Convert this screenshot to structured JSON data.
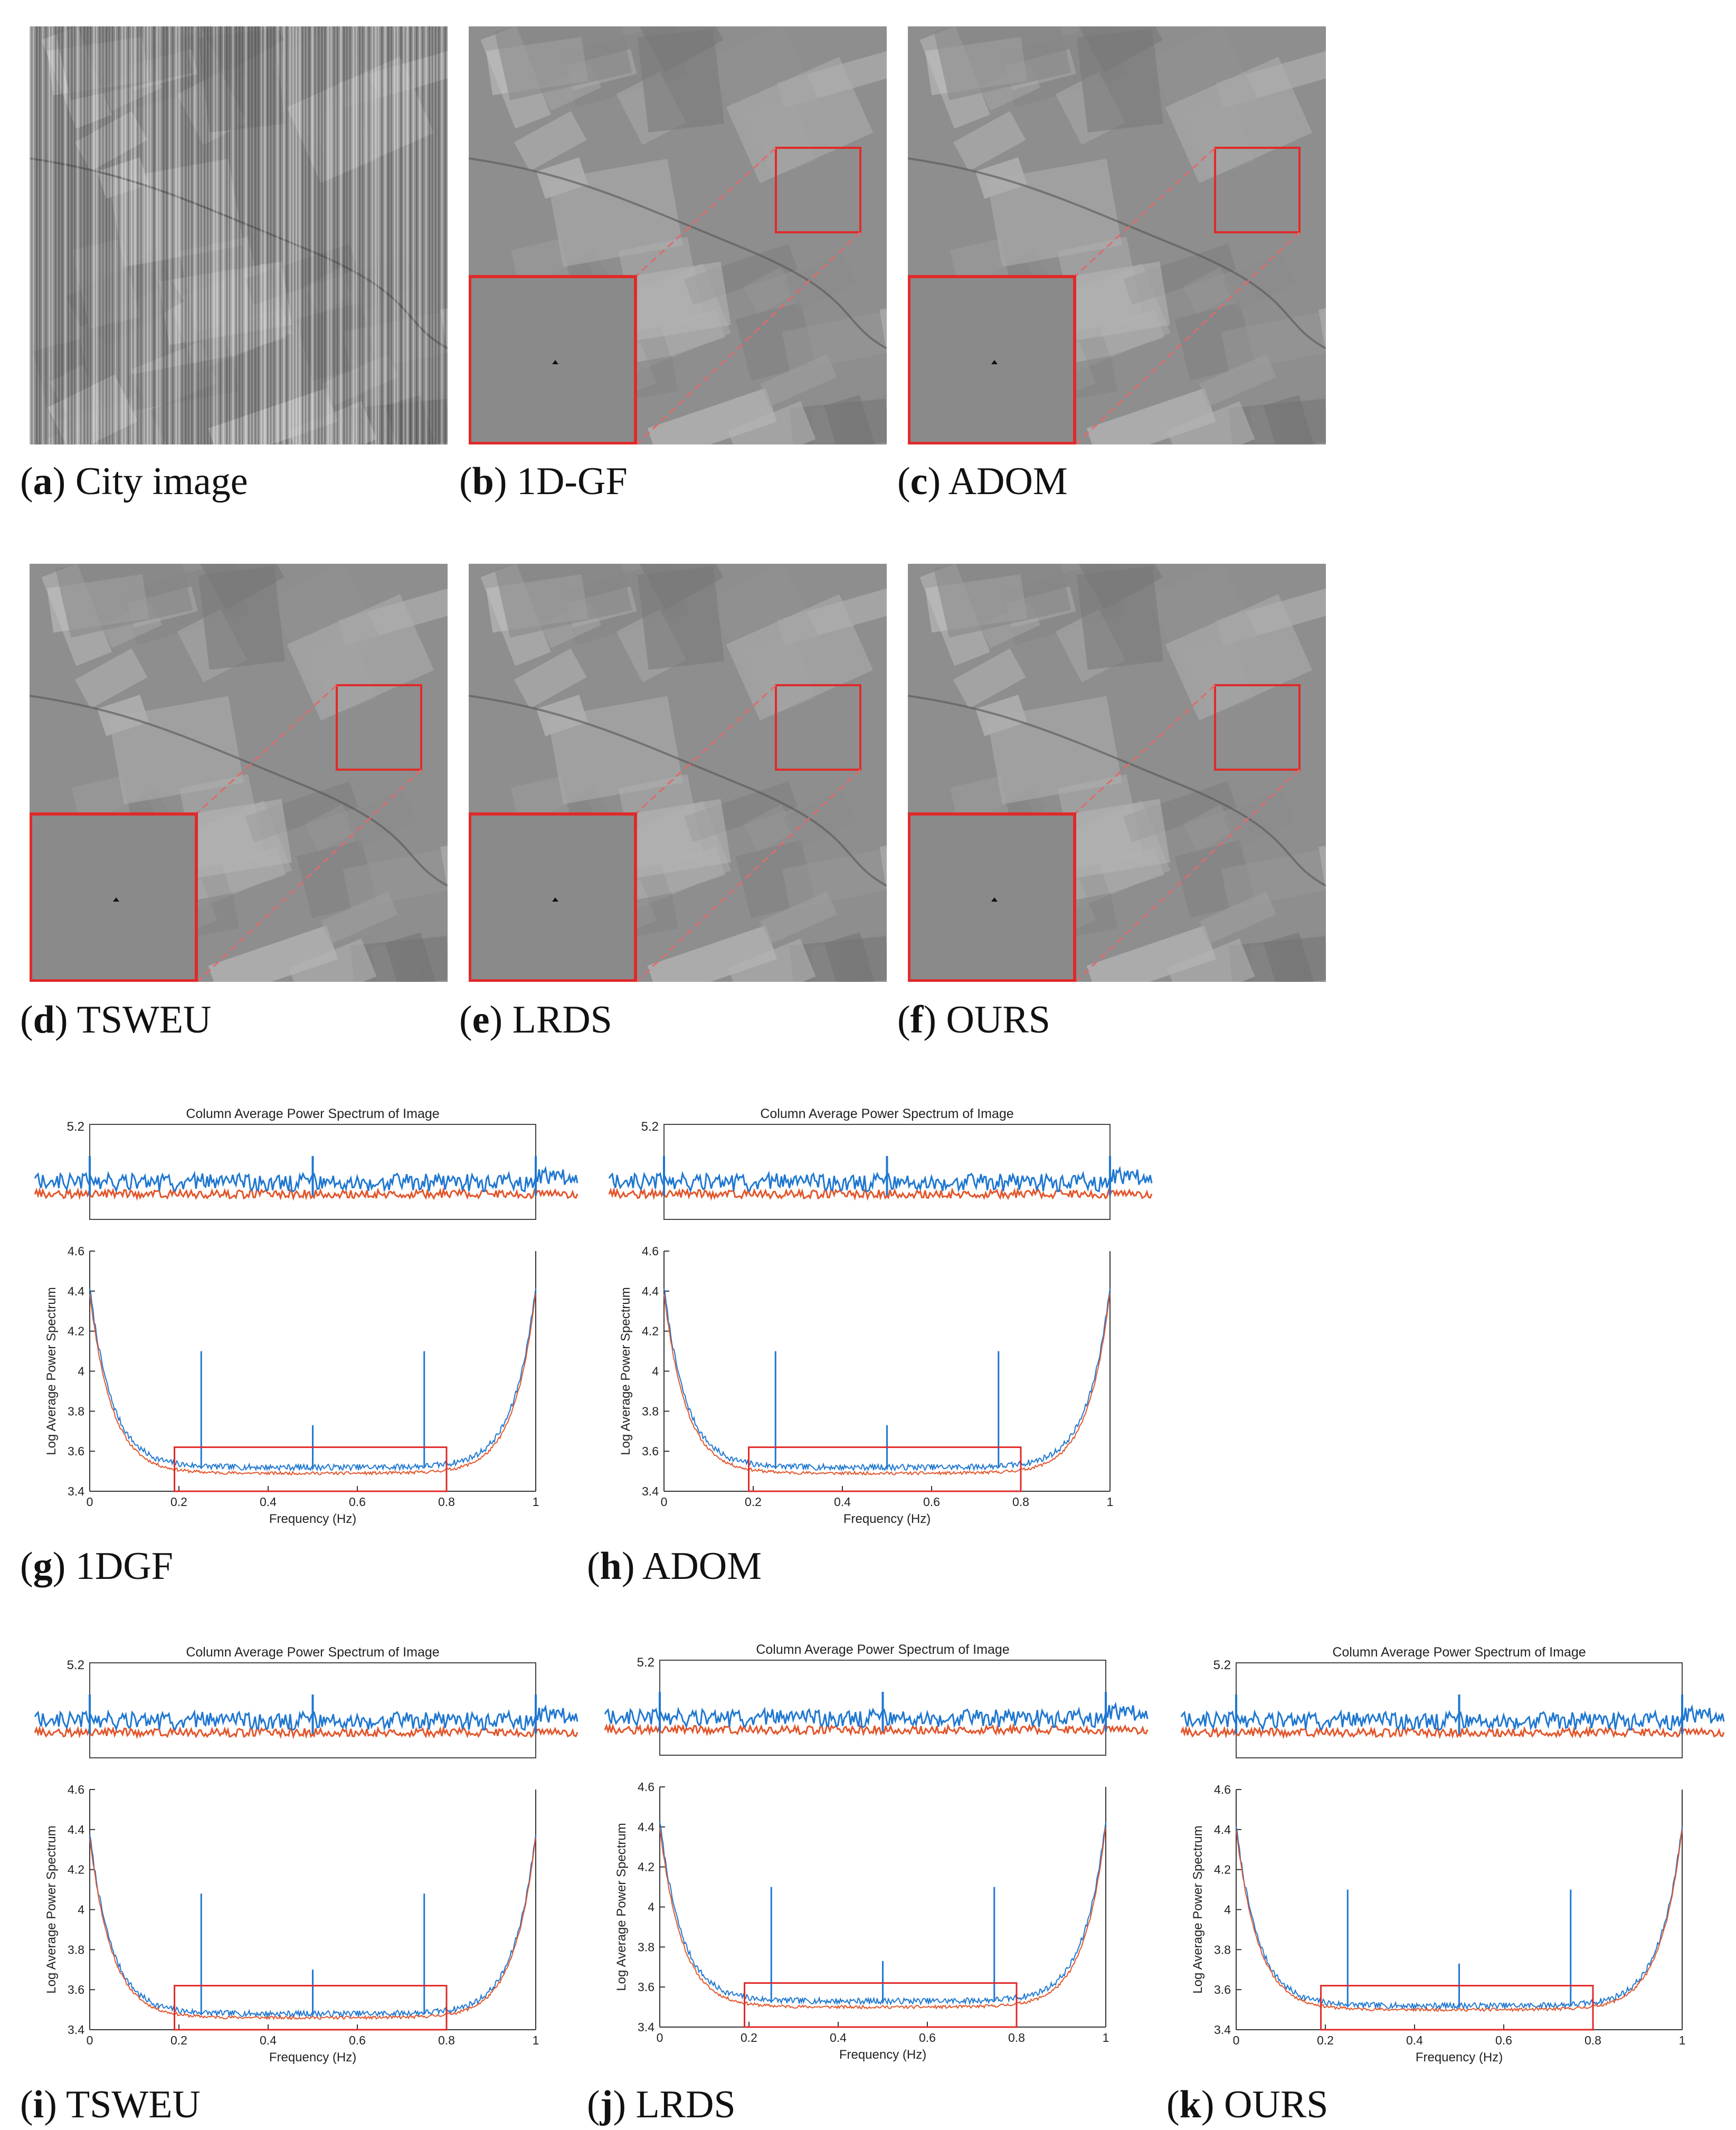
{
  "figure": {
    "image_panels": [
      {
        "letter": "a",
        "label": "City image",
        "stripes": true,
        "zoom": false
      },
      {
        "letter": "b",
        "label": "1D-GF",
        "stripes": false,
        "zoom": true
      },
      {
        "letter": "c",
        "label": "ADOM",
        "stripes": false,
        "zoom": true
      },
      {
        "letter": "d",
        "label": "TSWEU",
        "stripes": false,
        "zoom": true
      },
      {
        "letter": "e",
        "label": "LRDS",
        "stripes": false,
        "zoom": true
      },
      {
        "letter": "f",
        "label": "OURS",
        "stripes": false,
        "zoom": true
      }
    ],
    "chart_captions": [
      {
        "letter": "g",
        "label": "1DGF"
      },
      {
        "letter": "h",
        "label": "ADOM"
      },
      {
        "letter": "i",
        "label": "TSWEU"
      },
      {
        "letter": "j",
        "label": "LRDS"
      },
      {
        "letter": "k",
        "label": "OURS"
      }
    ],
    "colors": {
      "series_blue": "#1f77d0",
      "series_orange": "#e2552b",
      "zoom_box": "#e02a2a",
      "zoom_line": "#e06a6a"
    }
  },
  "chart_data": [
    {
      "type": "line",
      "title": "Column Average Power Spectrum of Image",
      "xlabel": "Frequency (Hz)",
      "ylabel": "Log Average Power Spectrum",
      "xlim": [
        0,
        1
      ],
      "ylim": [
        3.4,
        4.6
      ],
      "xticks": [
        "0",
        "0.2",
        "0.4",
        "0.6",
        "0.8",
        "1"
      ],
      "yticks": [
        "3.4",
        "3.6",
        "3.8",
        "4",
        "4.2",
        "4.4",
        "4.6"
      ],
      "inset_ytick": "5.2",
      "spikes": [
        {
          "x": 0.25,
          "y": 4.1
        },
        {
          "x": 0.5,
          "y": 3.73
        },
        {
          "x": 0.75,
          "y": 4.1
        }
      ],
      "baseline": {
        "blue": 3.52,
        "orange": 3.49
      },
      "zoom_box": {
        "x": [
          0.19,
          0.8
        ],
        "y": [
          3.4,
          3.62
        ]
      }
    },
    {
      "type": "line",
      "title": "Column Average Power Spectrum of Image",
      "xlabel": "Frequency (Hz)",
      "ylabel": "Log Average Power Spectrum",
      "xlim": [
        0,
        1
      ],
      "ylim": [
        3.4,
        4.6
      ],
      "xticks": [
        "0",
        "0.2",
        "0.4",
        "0.6",
        "0.8",
        "1"
      ],
      "yticks": [
        "3.4",
        "3.6",
        "3.8",
        "4",
        "4.2",
        "4.4",
        "4.6"
      ],
      "inset_ytick": "5.2",
      "spikes": [
        {
          "x": 0.25,
          "y": 4.1
        },
        {
          "x": 0.5,
          "y": 3.73
        },
        {
          "x": 0.75,
          "y": 4.1
        }
      ],
      "baseline": {
        "blue": 3.52,
        "orange": 3.49
      },
      "zoom_box": {
        "x": [
          0.19,
          0.8
        ],
        "y": [
          3.4,
          3.62
        ]
      }
    },
    {
      "type": "line",
      "title": "Column Average Power Spectrum of Image",
      "xlabel": "Frequency (Hz)",
      "ylabel": "Log Average Power Spectrum",
      "xlim": [
        0,
        1
      ],
      "ylim": [
        3.4,
        4.6
      ],
      "xticks": [
        "0",
        "0.2",
        "0.4",
        "0.6",
        "0.8",
        "1"
      ],
      "yticks": [
        "3.4",
        "3.6",
        "3.8",
        "4",
        "4.2",
        "4.4",
        "4.6"
      ],
      "inset_ytick": "5.2",
      "spikes": [
        {
          "x": 0.25,
          "y": 4.08
        },
        {
          "x": 0.5,
          "y": 3.7
        },
        {
          "x": 0.75,
          "y": 4.08
        }
      ],
      "baseline": {
        "blue": 3.48,
        "orange": 3.46
      },
      "zoom_box": {
        "x": [
          0.19,
          0.8
        ],
        "y": [
          3.4,
          3.62
        ]
      }
    },
    {
      "type": "line",
      "title": "Column Average Power Spectrum of Image",
      "xlabel": "Frequency (Hz)",
      "ylabel": "Log Average Power Spectrum",
      "xlim": [
        0,
        1
      ],
      "ylim": [
        3.4,
        4.6
      ],
      "xticks": [
        "0",
        "0.2",
        "0.4",
        "0.6",
        "0.8",
        "1"
      ],
      "yticks": [
        "3.4",
        "3.6",
        "3.8",
        "4",
        "4.2",
        "4.4",
        "4.6"
      ],
      "inset_ytick": "5.2",
      "spikes": [
        {
          "x": 0.25,
          "y": 4.1
        },
        {
          "x": 0.5,
          "y": 3.73
        },
        {
          "x": 0.75,
          "y": 4.1
        }
      ],
      "baseline": {
        "blue": 3.53,
        "orange": 3.5
      },
      "zoom_box": {
        "x": [
          0.19,
          0.8
        ],
        "y": [
          3.4,
          3.62
        ]
      }
    },
    {
      "type": "line",
      "title": "Column Average Power Spectrum of Image",
      "xlabel": "Frequency (Hz)",
      "ylabel": "Log Average Power Spectrum",
      "xlim": [
        0,
        1
      ],
      "ylim": [
        3.4,
        4.6
      ],
      "xticks": [
        "0",
        "0.2",
        "0.4",
        "0.6",
        "0.8",
        "1"
      ],
      "yticks": [
        "3.4",
        "3.6",
        "3.8",
        "4",
        "4.2",
        "4.4",
        "4.6"
      ],
      "inset_ytick": "5.2",
      "spikes": [
        {
          "x": 0.25,
          "y": 4.1
        },
        {
          "x": 0.5,
          "y": 3.73
        },
        {
          "x": 0.75,
          "y": 4.1
        }
      ],
      "baseline": {
        "blue": 3.52,
        "orange": 3.5
      },
      "zoom_box": {
        "x": [
          0.19,
          0.8
        ],
        "y": [
          3.4,
          3.62
        ]
      }
    }
  ]
}
